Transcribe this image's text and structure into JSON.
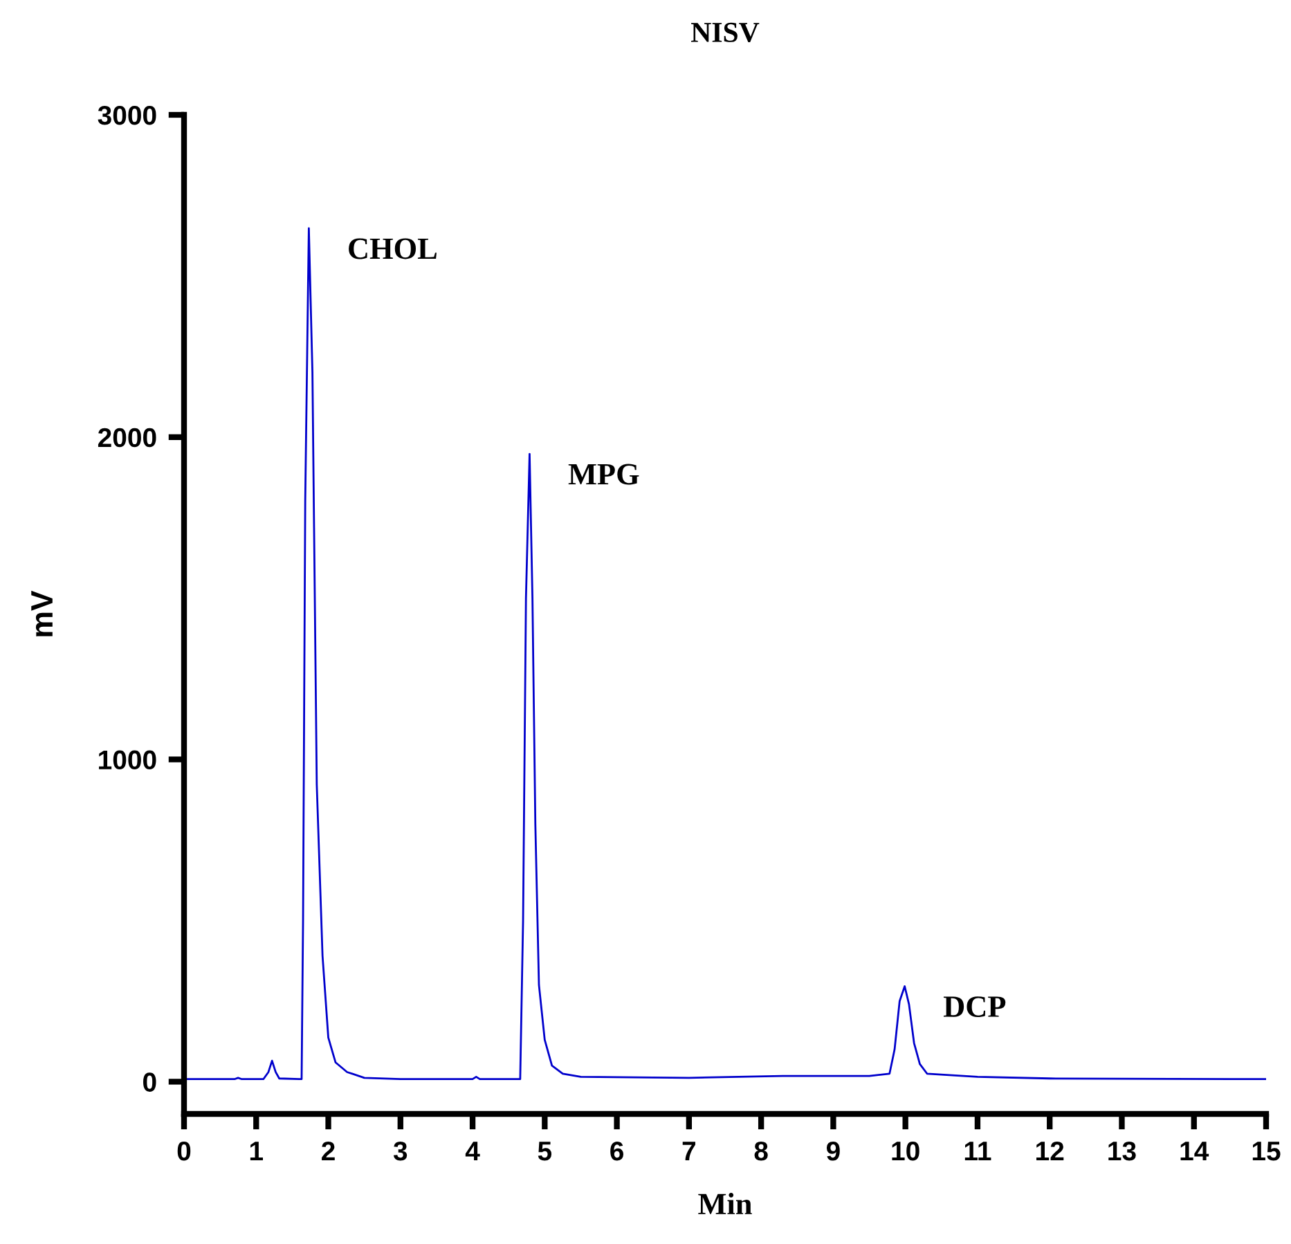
{
  "chart_data": {
    "type": "line",
    "title": "NISV",
    "xlabel": "Min",
    "ylabel": "mV",
    "xlim": [
      0,
      15
    ],
    "xticks": [
      0,
      1,
      2,
      3,
      4,
      5,
      6,
      7,
      8,
      9,
      10,
      11,
      12,
      13,
      14,
      15
    ],
    "ylim": [
      -100,
      3000
    ],
    "yticks": [
      0,
      1000,
      2000,
      3000
    ],
    "grid": false,
    "marker": "none",
    "line_style": "solid",
    "series": [
      {
        "color": "#0000cc",
        "x": [
          0,
          0.7,
          0.75,
          0.8,
          1.1,
          1.17,
          1.22,
          1.27,
          1.32,
          1.6,
          1.63,
          1.65,
          1.68,
          1.73,
          1.78,
          1.84,
          1.92,
          2.0,
          2.1,
          2.26,
          2.5,
          3,
          4,
          4.05,
          4.1,
          4.66,
          4.7,
          4.74,
          4.79,
          4.83,
          4.87,
          4.92,
          5.0,
          5.1,
          5.25,
          5.5,
          7,
          8.3,
          9.5,
          9.78,
          9.85,
          9.92,
          9.99,
          10.05,
          10.12,
          10.2,
          10.3,
          11,
          12,
          15
        ],
        "values": [
          8,
          8,
          12,
          8,
          8,
          30,
          65,
          30,
          10,
          8,
          8,
          500,
          1800,
          2648,
          2200,
          922,
          390,
          137,
          60,
          30,
          12,
          8,
          8,
          15,
          8,
          8,
          500,
          1500,
          1948,
          1500,
          800,
          300,
          130,
          50,
          25,
          15,
          12,
          18,
          18,
          25,
          100,
          250,
          296,
          240,
          120,
          55,
          25,
          15,
          10,
          8
        ]
      }
    ],
    "annotations": [
      {
        "text": "CHOL",
        "x": 1.73,
        "y": 2648
      },
      {
        "text": "MPG",
        "x": 4.79,
        "y": 1948
      },
      {
        "text": "DCP",
        "x": 9.99,
        "y": 296
      }
    ]
  }
}
